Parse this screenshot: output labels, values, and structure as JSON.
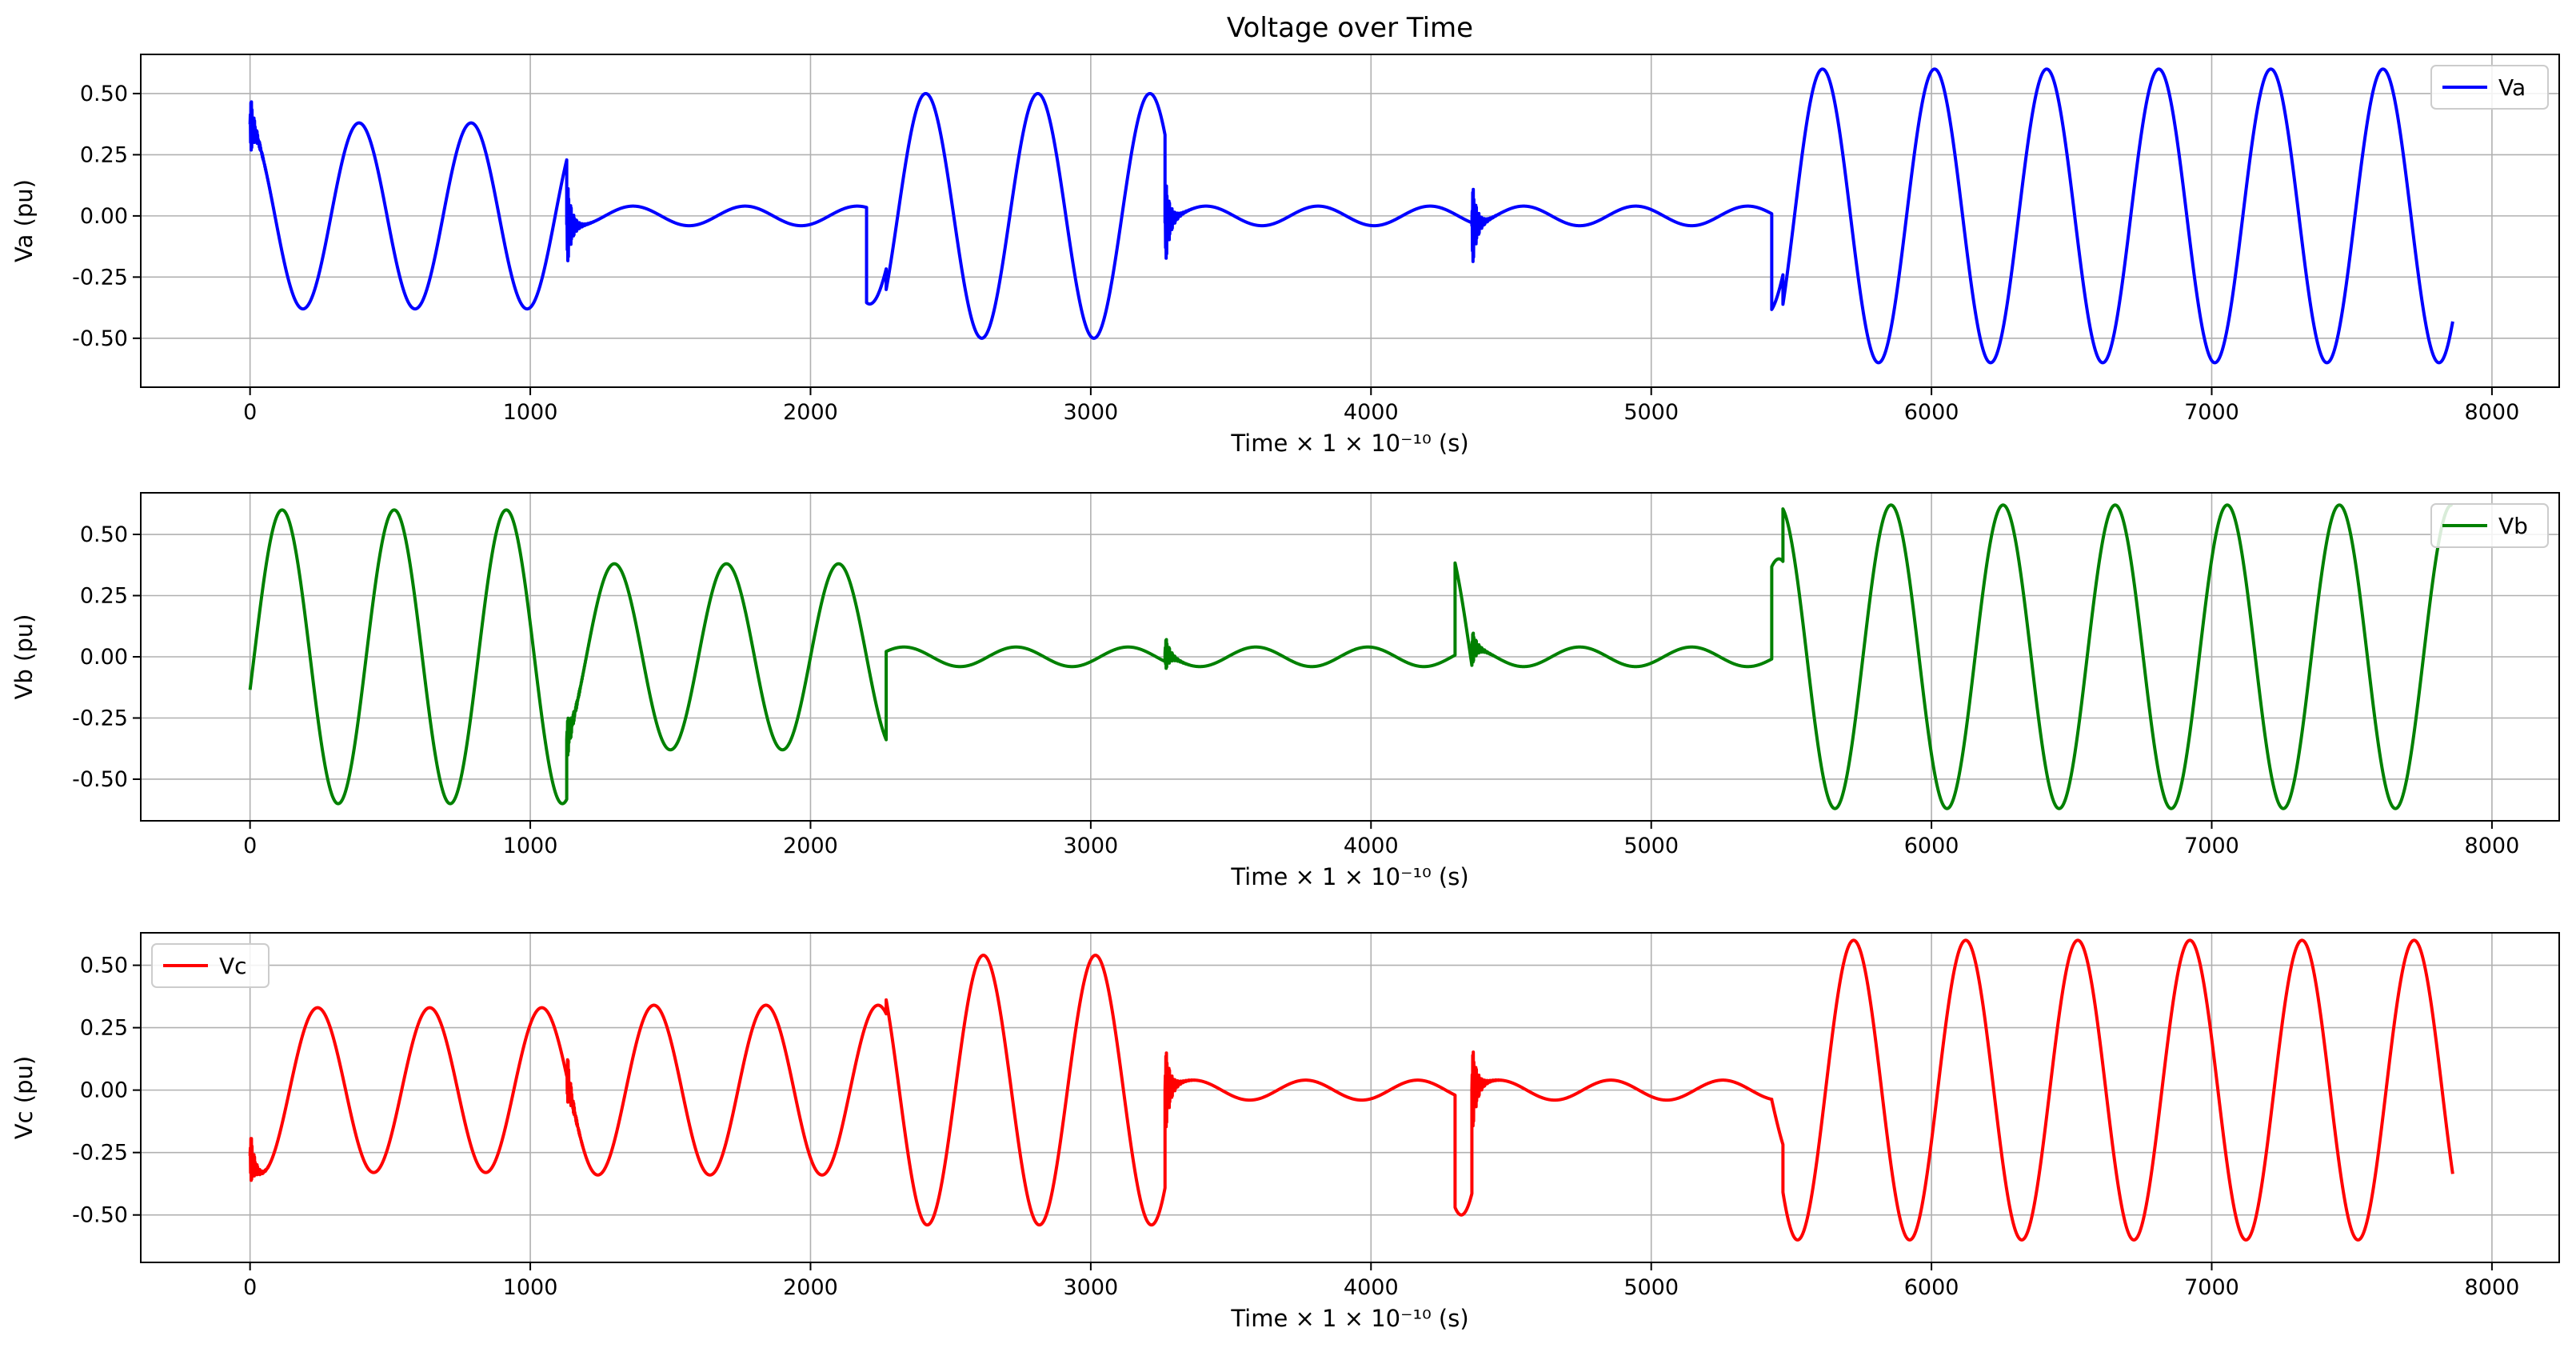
{
  "figure": {
    "title": "Voltage over Time"
  },
  "chart_data": [
    {
      "type": "line",
      "title": "Voltage over Time",
      "xlabel": "Time × 1 × 10⁻¹⁰ (s)",
      "ylabel": "Va (pu)",
      "xlim": [
        -390,
        8240
      ],
      "ylim": [
        -0.7,
        0.66
      ],
      "xticks": [
        "0",
        "1000",
        "2000",
        "3000",
        "4000",
        "5000",
        "6000",
        "7000",
        "8000"
      ],
      "yticks": [
        "0.50",
        "0.25",
        "0.00",
        "-0.25",
        "-0.50"
      ],
      "grid": true,
      "legend_position": "top-right",
      "series": [
        {
          "name": "Va",
          "color": "#0000ff",
          "segments": [
            {
              "x_start": 0,
              "x_end": 1130,
              "amplitude": 0.38,
              "phase_deg": 100,
              "transient": {
                "amp": 0.14,
                "freq": 0.45,
                "decay": 14
              }
            },
            {
              "x_start": 1130,
              "x_end": 2200,
              "amplitude": 0.04,
              "phase_deg": 300,
              "transient": {
                "amp": 0.2,
                "freq": 0.45,
                "decay": 16
              }
            },
            {
              "x_start": 2200,
              "x_end": 2270,
              "amplitude": 0.36,
              "phase_deg": 80
            },
            {
              "x_start": 2270,
              "x_end": 3265,
              "amplitude": 0.5,
              "phase_deg": 80
            },
            {
              "x_start": 3265,
              "x_end": 4360,
              "amplitude": 0.04,
              "phase_deg": 260,
              "transient": {
                "amp": 0.2,
                "freq": 0.45,
                "decay": 16
              }
            },
            {
              "x_start": 4360,
              "x_end": 5430,
              "amplitude": 0.04,
              "phase_deg": 320,
              "transient": {
                "amp": 0.2,
                "freq": 0.45,
                "decay": 16
              }
            },
            {
              "x_start": 5430,
              "x_end": 5470,
              "amplitude": 0.4,
              "phase_deg": 80
            },
            {
              "x_start": 5470,
              "x_end": 7860,
              "amplitude": 0.6,
              "phase_deg": 80
            }
          ]
        }
      ]
    },
    {
      "type": "line",
      "title": "",
      "xlabel": "Time × 1 × 10⁻¹⁰ (s)",
      "ylabel": "Vb (pu)",
      "xlim": [
        -390,
        8240
      ],
      "ylim": [
        -0.67,
        0.67
      ],
      "xticks": [
        "0",
        "1000",
        "2000",
        "3000",
        "4000",
        "5000",
        "6000",
        "7000",
        "8000"
      ],
      "yticks": [
        "0.50",
        "0.25",
        "0.00",
        "-0.25",
        "-0.50"
      ],
      "grid": true,
      "legend_position": "top-right",
      "series": [
        {
          "name": "Vb",
          "color": "#008000",
          "segments": [
            {
              "x_start": 0,
              "x_end": 1130,
              "amplitude": 0.6,
              "phase_deg": 347
            },
            {
              "x_start": 1130,
              "x_end": 2270,
              "amplitude": 0.38,
              "phase_deg": 0,
              "transient": {
                "amp": 0.1,
                "freq": 0.45,
                "decay": 16
              }
            },
            {
              "x_start": 2270,
              "x_end": 3265,
              "amplitude": 0.04,
              "phase_deg": 150
            },
            {
              "x_start": 3265,
              "x_end": 4300,
              "amplitude": 0.04,
              "phase_deg": 100,
              "transient": {
                "amp": 0.08,
                "freq": 0.45,
                "decay": 16
              }
            },
            {
              "x_start": 4300,
              "x_end": 4360,
              "amplitude": 0.5,
              "phase_deg": 220
            },
            {
              "x_start": 4360,
              "x_end": 5430,
              "amplitude": 0.04,
              "phase_deg": 140,
              "transient": {
                "amp": 0.08,
                "freq": 0.45,
                "decay": 16
              }
            },
            {
              "x_start": 5430,
              "x_end": 5470,
              "amplitude": 0.4,
              "phase_deg": 220
            },
            {
              "x_start": 5470,
              "x_end": 7860,
              "amplitude": 0.62,
              "phase_deg": 220
            }
          ]
        }
      ]
    },
    {
      "type": "line",
      "title": "",
      "xlabel": "Time × 1 × 10⁻¹⁰ (s)",
      "ylabel": "Vc (pu)",
      "xlim": [
        -390,
        8240
      ],
      "ylim": [
        -0.69,
        0.63
      ],
      "xticks": [
        "0",
        "1000",
        "2000",
        "3000",
        "4000",
        "5000",
        "6000",
        "7000",
        "8000"
      ],
      "yticks": [
        "0.50",
        "0.25",
        "0.00",
        "-0.25",
        "-0.50"
      ],
      "grid": true,
      "legend_position": "top-left",
      "series": [
        {
          "name": "Vc",
          "color": "#ff0000",
          "segments": [
            {
              "x_start": 0,
              "x_end": 1130,
              "amplitude": 0.33,
              "phase_deg": 233,
              "transient": {
                "amp": 0.12,
                "freq": 0.45,
                "decay": 14
              }
            },
            {
              "x_start": 1130,
              "x_end": 2270,
              "amplitude": 0.34,
              "phase_deg": 233,
              "transient": {
                "amp": 0.12,
                "freq": 0.45,
                "decay": 14
              }
            },
            {
              "x_start": 2270,
              "x_end": 3265,
              "amplitude": 0.54,
              "phase_deg": 255
            },
            {
              "x_start": 3265,
              "x_end": 4300,
              "amplitude": 0.04,
              "phase_deg": 300,
              "transient": {
                "amp": 0.2,
                "freq": 0.45,
                "decay": 16
              }
            },
            {
              "x_start": 4300,
              "x_end": 4360,
              "amplitude": 0.5,
              "phase_deg": 340
            },
            {
              "x_start": 4360,
              "x_end": 5430,
              "amplitude": 0.04,
              "phase_deg": 40,
              "transient": {
                "amp": 0.2,
                "freq": 0.45,
                "decay": 16
              }
            },
            {
              "x_start": 5430,
              "x_end": 5470,
              "amplitude": 0.32,
              "phase_deg": 340
            },
            {
              "x_start": 5470,
              "x_end": 7860,
              "amplitude": 0.6,
              "phase_deg": 340
            }
          ]
        }
      ]
    }
  ]
}
